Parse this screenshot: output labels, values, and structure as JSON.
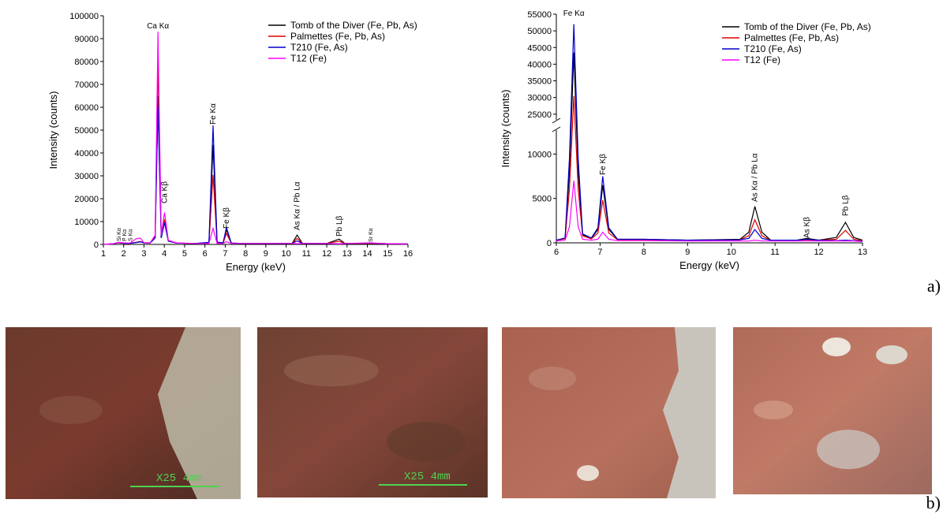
{
  "chart_data": [
    {
      "type": "line",
      "x_label": "Energy (keV)",
      "y_label": "Intensity (counts)",
      "xlim": [
        1,
        16
      ],
      "xticks": [
        1,
        2,
        3,
        4,
        5,
        6,
        7,
        8,
        9,
        10,
        11,
        12,
        13,
        14,
        15,
        16
      ],
      "ylim": [
        0,
        100000
      ],
      "yticks": [
        0,
        10000,
        20000,
        30000,
        40000,
        50000,
        60000,
        70000,
        80000,
        90000,
        100000
      ],
      "legend": "top-right",
      "grid": false,
      "annotations": [
        "Ca Kα",
        "Ca Kβ",
        "Fe Kα",
        "Fe Kβ",
        "As Kα / Pb Lα",
        "Pb Lβ",
        "Sr Kα",
        "Si Kα",
        "P Kα",
        "S Kα"
      ],
      "x": [
        1,
        1.5,
        1.74,
        2.01,
        2.31,
        2.62,
        2.82,
        3.0,
        3.3,
        3.55,
        3.69,
        3.85,
        4.01,
        4.2,
        4.6,
        5.5,
        6.2,
        6.4,
        6.6,
        6.9,
        7.06,
        7.3,
        8.0,
        9.0,
        10.3,
        10.54,
        10.8,
        12.0,
        12.61,
        12.9,
        14.14,
        15,
        16
      ],
      "series": [
        {
          "name": "Tomb of the Diver (Fe, Pb, As)",
          "color": "#000000",
          "values": [
            0,
            300,
            800,
            600,
            500,
            900,
            1200,
            700,
            600,
            3000,
            65000,
            3000,
            10000,
            1500,
            600,
            400,
            800,
            43500,
            900,
            700,
            6500,
            600,
            400,
            400,
            500,
            4100,
            500,
            400,
            2300,
            400,
            500,
            300,
            200
          ]
        },
        {
          "name": "Palmettes (Fe, Pb, As)",
          "color": "#e00000",
          "values": [
            0,
            300,
            700,
            500,
            500,
            900,
            1300,
            700,
            600,
            3500,
            80000,
            3500,
            11000,
            1500,
            600,
            400,
            700,
            30500,
            800,
            600,
            4800,
            600,
            400,
            400,
            500,
            2600,
            500,
            400,
            1400,
            400,
            500,
            300,
            200
          ]
        },
        {
          "name": "T210 (Fe, As)",
          "color": "#0000cc",
          "values": [
            0,
            300,
            800,
            500,
            500,
            800,
            1100,
            700,
            600,
            2800,
            60000,
            2800,
            9500,
            1400,
            600,
            400,
            900,
            52000,
            1000,
            700,
            7500,
            600,
            400,
            400,
            500,
            1500,
            500,
            400,
            300,
            400,
            600,
            300,
            200
          ]
        },
        {
          "name": "T12 (Fe)",
          "color": "#ff00ff",
          "values": [
            0,
            300,
            900,
            700,
            600,
            2500,
            2800,
            800,
            700,
            4000,
            93000,
            4000,
            14000,
            1800,
            700,
            400,
            400,
            7000,
            400,
            400,
            1200,
            400,
            400,
            400,
            400,
            300,
            400,
            400,
            200,
            400,
            700,
            300,
            200
          ]
        }
      ]
    },
    {
      "type": "line",
      "x_label": "Energy (keV)",
      "y_label": "Intensity (counts)",
      "xlim": [
        6,
        13
      ],
      "xticks": [
        6,
        7,
        8,
        9,
        10,
        11,
        12,
        13
      ],
      "ylim": [
        0,
        55000
      ],
      "y_break": [
        12700,
        23300
      ],
      "yticks": [
        0,
        5000,
        10000,
        25000,
        30000,
        35000,
        40000,
        45000,
        50000,
        55000
      ],
      "legend": "top-right",
      "grid": false,
      "annotations": [
        "Fe Kα",
        "Fe Kβ",
        "As Kα / Pb Lα",
        "As Kβ",
        "Pb Lβ"
      ],
      "x": [
        6,
        6.2,
        6.3,
        6.4,
        6.5,
        6.6,
        6.8,
        6.95,
        7.06,
        7.2,
        7.4,
        8.0,
        9.0,
        10.2,
        10.4,
        10.54,
        10.7,
        10.9,
        11.5,
        11.73,
        12.0,
        12.4,
        12.61,
        12.8,
        13
      ],
      "series": [
        {
          "name": "Tomb of the Diver (Fe, Pb, As)",
          "color": "#000000",
          "values": [
            300,
            500,
            8000,
            43500,
            8000,
            900,
            500,
            1500,
            6500,
            1500,
            400,
            400,
            300,
            400,
            1200,
            4100,
            1200,
            300,
            300,
            500,
            300,
            600,
            2300,
            600,
            300
          ]
        },
        {
          "name": "Palmettes (Fe, Pb, As)",
          "color": "#e00000",
          "values": [
            300,
            450,
            6000,
            30500,
            6000,
            800,
            450,
            1100,
            4800,
            1100,
            350,
            350,
            300,
            350,
            800,
            2600,
            800,
            300,
            300,
            350,
            300,
            400,
            1400,
            400,
            250
          ]
        },
        {
          "name": "T210 (Fe, As)",
          "color": "#0000cc",
          "values": [
            300,
            550,
            9500,
            52000,
            9500,
            1000,
            550,
            1700,
            7500,
            1700,
            400,
            400,
            300,
            350,
            500,
            1500,
            500,
            300,
            300,
            400,
            300,
            250,
            300,
            250,
            200
          ]
        },
        {
          "name": "T12 (Fe)",
          "color": "#ff00ff",
          "values": [
            200,
            300,
            1800,
            7000,
            1800,
            400,
            300,
            400,
            1200,
            400,
            250,
            250,
            200,
            200,
            200,
            300,
            200,
            200,
            200,
            200,
            200,
            200,
            200,
            200,
            150
          ]
        }
      ]
    }
  ],
  "panel_labels": [
    "a)",
    "b)"
  ],
  "photos": [
    {
      "scale_label": "X25 4mm"
    },
    {
      "scale_label": "X25 4mm"
    }
  ]
}
